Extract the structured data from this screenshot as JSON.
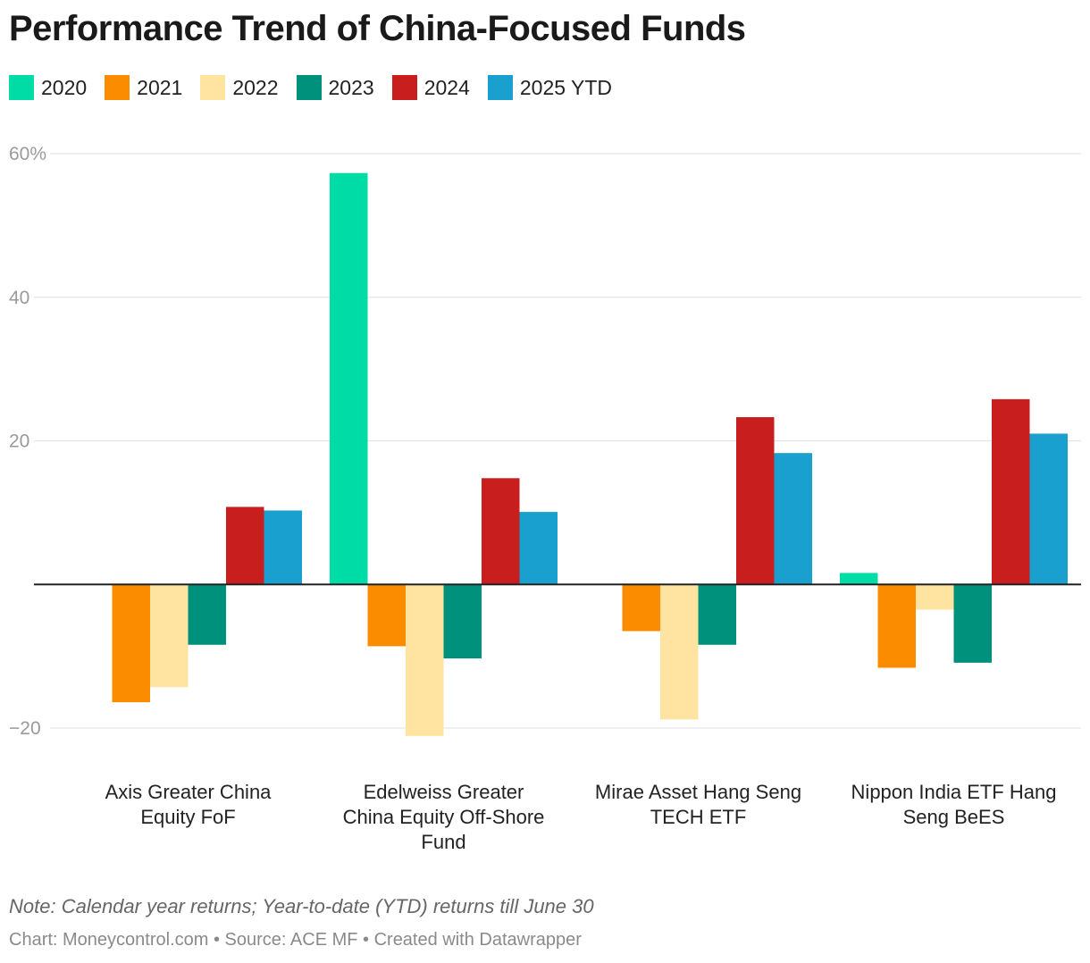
{
  "chart_data": {
    "type": "bar",
    "title": "Performance Trend of China-Focused Funds",
    "categories": [
      [
        "Axis Greater China",
        "Equity FoF"
      ],
      [
        "Edelweiss Greater",
        "China Equity Off-Shore",
        "Fund"
      ],
      [
        "Mirae Asset Hang Seng",
        "TECH ETF"
      ],
      [
        "Nippon India ETF Hang",
        "Seng BeES"
      ]
    ],
    "series": [
      {
        "name": "2020",
        "color": "#00dca6",
        "values": [
          null,
          57.3,
          null,
          1.6
        ]
      },
      {
        "name": "2021",
        "color": "#fb8c00",
        "values": [
          -16.4,
          -8.6,
          -6.5,
          -11.6
        ]
      },
      {
        "name": "2022",
        "color": "#ffe3a0",
        "values": [
          -14.3,
          -21.1,
          -18.8,
          -3.5
        ]
      },
      {
        "name": "2023",
        "color": "#00917c",
        "values": [
          -8.4,
          -10.3,
          -8.4,
          -10.9
        ]
      },
      {
        "name": "2024",
        "color": "#c81e1e",
        "values": [
          10.8,
          14.8,
          23.3,
          25.8
        ]
      },
      {
        "name": "2025 YTD",
        "color": "#19a0cf",
        "values": [
          10.3,
          10.1,
          18.3,
          21.0
        ]
      }
    ],
    "ylim": [
      -22,
      60
    ],
    "yticks": [
      {
        "value": 60,
        "label": "60%"
      },
      {
        "value": 40,
        "label": "40"
      },
      {
        "value": 20,
        "label": "20"
      },
      {
        "value": -20,
        "label": "−20"
      }
    ],
    "grid": true,
    "legend_position": "top-left"
  },
  "footer": {
    "note": "Note: Calendar year returns; Year-to-date (YTD) returns till June 30",
    "source": "Chart: Moneycontrol.com • Source: ACE MF • Created with Datawrapper"
  }
}
